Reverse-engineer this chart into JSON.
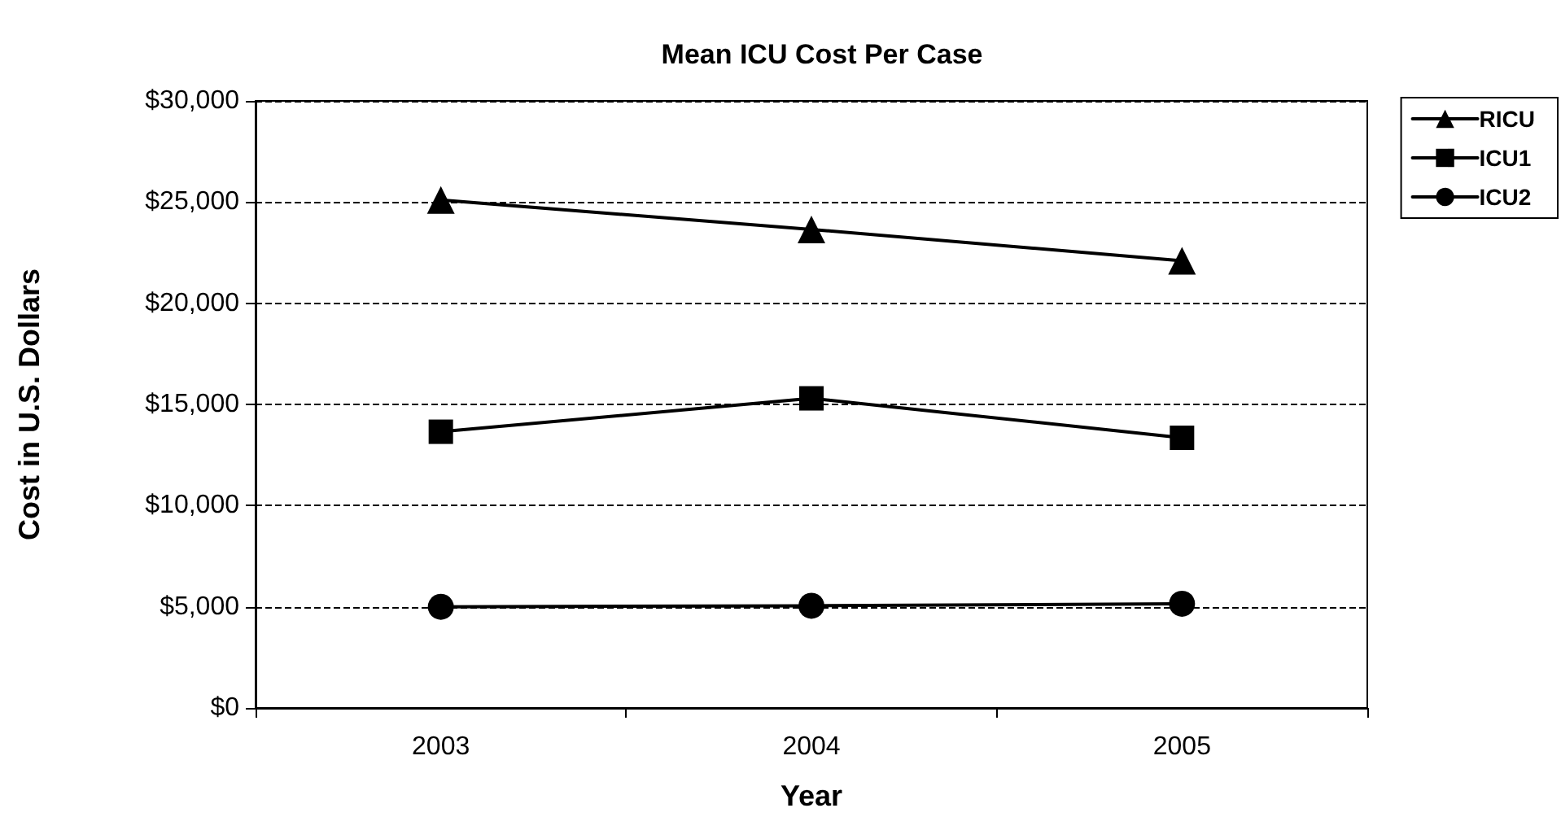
{
  "chart_data": {
    "type": "line",
    "title": "Mean ICU Cost Per Case",
    "xlabel": "Year",
    "ylabel": "Cost in U.S. Dollars",
    "categories": [
      "2003",
      "2004",
      "2005"
    ],
    "series": [
      {
        "name": "RICU",
        "color": "#000000",
        "marker": "triangle",
        "values": [
          25100,
          23650,
          22100
        ]
      },
      {
        "name": "ICU1",
        "color": "#000000",
        "marker": "square",
        "values": [
          13650,
          15300,
          13350
        ]
      },
      {
        "name": "ICU2",
        "color": "#000000",
        "marker": "circle",
        "values": [
          5000,
          5050,
          5150
        ]
      }
    ],
    "ylim": [
      0,
      30000
    ],
    "yticks": [
      {
        "value": 0,
        "label": "$0"
      },
      {
        "value": 5000,
        "label": "$5,000"
      },
      {
        "value": 10000,
        "label": "$10,000"
      },
      {
        "value": 15000,
        "label": "$15,000"
      },
      {
        "value": 20000,
        "label": "$20,000"
      },
      {
        "value": 25000,
        "label": "$25,000"
      },
      {
        "value": 30000,
        "label": "$30,000"
      }
    ],
    "grid": "y",
    "legend": "right",
    "line_style": "solid"
  }
}
